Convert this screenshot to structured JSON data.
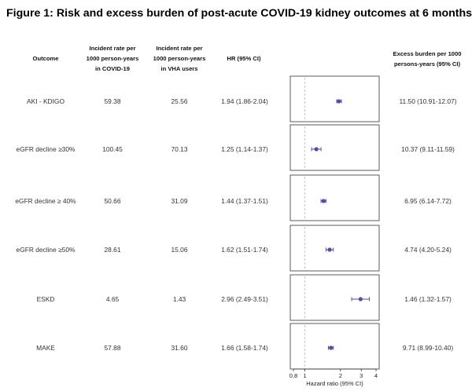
{
  "figure_title": "Figure 1: Risk and excess burden of post-acute COVID-19 kidney outcomes at 6 months.",
  "headers": {
    "outcome": "Outcome",
    "rate_covid": [
      "Incident rate per",
      "1000 person-years",
      "in COVID-19"
    ],
    "rate_vha": [
      "Incident rate per",
      "1000 person-years",
      "in VHA users"
    ],
    "hr": "HR (95% CI)",
    "excess": [
      "Excess burden per 1000",
      "persons-years (95% CI)"
    ]
  },
  "colors": {
    "point": "#4f4f9a",
    "panel_border": "#333333",
    "reference_line": "#bbbbbb"
  },
  "chart_data": {
    "type": "forest",
    "x_scale": "log",
    "xlim": [
      0.8,
      4
    ],
    "reference_value": 1,
    "x_ticks": [
      "0.8",
      "1",
      "2",
      "3",
      "4"
    ],
    "xlabel": "Hazard ratio (95% CI)",
    "rows": [
      {
        "outcome": "AKI - KDIGO",
        "rate_covid": "59.38",
        "rate_vha": "25.56",
        "hr_text": "1.94 (1.86-2.04)",
        "hr": 1.94,
        "lo": 1.86,
        "hi": 2.04,
        "excess_text": "11.50 (10.91-12.07)"
      },
      {
        "outcome": "eGFR decline ≥30%",
        "rate_covid": "100.45",
        "rate_vha": "70.13",
        "hr_text": "1.25 (1.14-1.37)",
        "hr": 1.25,
        "lo": 1.14,
        "hi": 1.37,
        "excess_text": "10.37 (9.11-11.59)"
      },
      {
        "outcome": "eGFR decline ≥ 40%",
        "rate_covid": "50.66",
        "rate_vha": "31.09",
        "hr_text": "1.44 (1.37-1.51)",
        "hr": 1.44,
        "lo": 1.37,
        "hi": 1.51,
        "excess_text": "6.95 (6.14-7.72)"
      },
      {
        "outcome": "eGFR decline ≥50%",
        "rate_covid": "28.61",
        "rate_vha": "15.06",
        "hr_text": "1.62 (1.51-1.74)",
        "hr": 1.62,
        "lo": 1.51,
        "hi": 1.74,
        "excess_text": "4.74 (4.20-5.24)"
      },
      {
        "outcome": "ESKD",
        "rate_covid": "4.65",
        "rate_vha": "1.43",
        "hr_text": "2.96 (2.49-3.51)",
        "hr": 2.96,
        "lo": 2.49,
        "hi": 3.51,
        "excess_text": "1.46 (1.32-1.57)"
      },
      {
        "outcome": "MAKE",
        "rate_covid": "57.88",
        "rate_vha": "31.60",
        "hr_text": "1.66 (1.58-1.74)",
        "hr": 1.66,
        "lo": 1.58,
        "hi": 1.74,
        "excess_text": "9.71 (8.99-10.40)"
      }
    ]
  }
}
